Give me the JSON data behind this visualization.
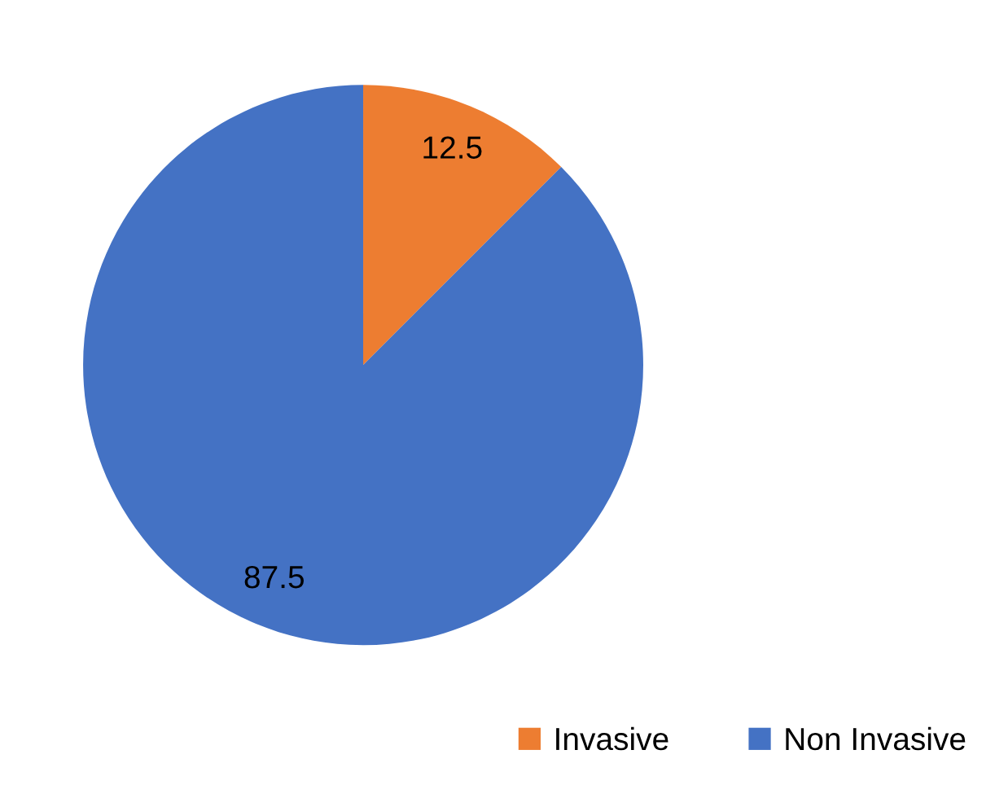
{
  "chart_data": {
    "type": "pie",
    "categories": [
      "Invasive",
      "Non Invasive"
    ],
    "values": [
      12.5,
      87.5
    ],
    "colors": [
      "#ed7d31",
      "#4472c4"
    ],
    "data_labels": true,
    "legend": "bottom right"
  }
}
